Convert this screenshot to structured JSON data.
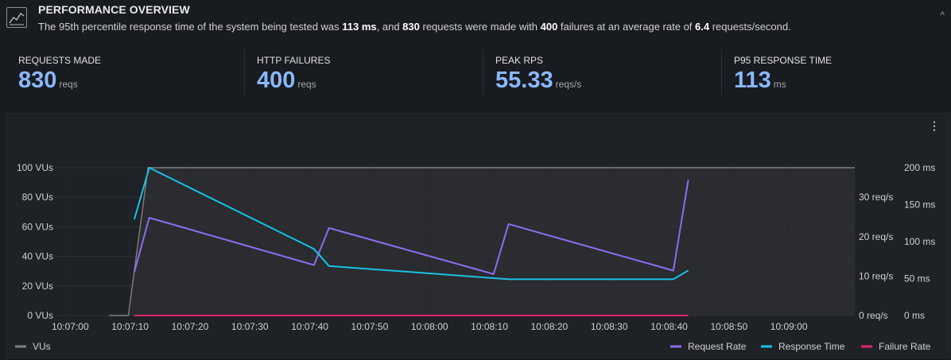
{
  "header": {
    "title": "PERFORMANCE OVERVIEW",
    "desc_parts": [
      {
        "text": "The 95th percentile response time of the system being tested was ",
        "bold": false
      },
      {
        "text": "113 ms",
        "bold": true
      },
      {
        "text": ", and ",
        "bold": false
      },
      {
        "text": "830",
        "bold": true
      },
      {
        "text": " requests were made with ",
        "bold": false
      },
      {
        "text": "400",
        "bold": true
      },
      {
        "text": " failures at an average rate of ",
        "bold": false
      },
      {
        "text": "6.4",
        "bold": true
      },
      {
        "text": " requests/second.",
        "bold": false
      }
    ],
    "collapse_glyph": "^"
  },
  "stats": [
    {
      "label": "REQUESTS MADE",
      "value": "830",
      "unit": "reqs"
    },
    {
      "label": "HTTP FAILURES",
      "value": "400",
      "unit": "reqs"
    },
    {
      "label": "PEAK RPS",
      "value": "55.33",
      "unit": "reqs/s"
    },
    {
      "label": "P95 RESPONSE TIME",
      "value": "113",
      "unit": "ms"
    }
  ],
  "panel": {
    "menu_glyph": "⋮"
  },
  "colors": {
    "vus": "#808080",
    "request_rate": "#8f6cf0",
    "response_time": "#19c2e6",
    "failure_rate": "#e0226e",
    "stat_value": "#8ab8ff"
  },
  "chart_data": {
    "type": "line",
    "x_tick_labels": [
      "10:07:00",
      "10:07:10",
      "10:07:20",
      "10:07:30",
      "10:07:40",
      "10:07:50",
      "10:08:00",
      "10:08:10",
      "10:08:20",
      "10:08:30",
      "10:08:40",
      "10:08:50",
      "10:09:00"
    ],
    "x_range_seconds": [
      -1.5,
      131
    ],
    "axes": {
      "vus": {
        "ticks": [
          "0 VUs",
          "20 VUs",
          "40 VUs",
          "60 VUs",
          "80 VUs",
          "100 VUs"
        ],
        "range": [
          0,
          100
        ]
      },
      "req_rate": {
        "ticks": [
          "0 req/s",
          "10 req/s",
          "20 req/s",
          "30 req/s"
        ],
        "range": [
          0,
          37.5
        ]
      },
      "response_time": {
        "ticks": [
          "0 ms",
          "50 ms",
          "100 ms",
          "150 ms",
          "200 ms"
        ],
        "range": [
          0,
          200
        ]
      }
    },
    "series": [
      {
        "name": "VUs",
        "axis": "vus",
        "color_key": "vus",
        "points": [
          [
            6.5,
            0
          ],
          [
            9.7,
            0
          ],
          [
            13,
            100
          ],
          [
            131,
            100
          ]
        ]
      },
      {
        "name": "Request Rate",
        "axis": "req_rate",
        "color_key": "request_rate",
        "points": [
          [
            10.7,
            11
          ],
          [
            13.2,
            24.8
          ],
          [
            40.7,
            12.8
          ],
          [
            43.2,
            22.2
          ],
          [
            70.7,
            10.5
          ],
          [
            73.2,
            23.2
          ],
          [
            100.7,
            11.4
          ],
          [
            103.2,
            34.4
          ]
        ]
      },
      {
        "name": "Response Time",
        "axis": "response_time",
        "color_key": "response_time",
        "points": [
          [
            10.7,
            130
          ],
          [
            13.2,
            200
          ],
          [
            40.7,
            90
          ],
          [
            43.2,
            67
          ],
          [
            73.2,
            49
          ],
          [
            100.7,
            49
          ],
          [
            103.2,
            61
          ]
        ]
      },
      {
        "name": "Failure Rate",
        "axis": "req_rate",
        "color_key": "failure_rate",
        "points": [
          [
            10.7,
            0
          ],
          [
            103.2,
            0
          ]
        ]
      }
    ],
    "legend": {
      "left": [
        {
          "name": "VUs",
          "color_key": "vus"
        }
      ],
      "right": [
        {
          "name": "Request Rate",
          "color_key": "request_rate"
        },
        {
          "name": "Response Time",
          "color_key": "response_time"
        },
        {
          "name": "Failure Rate",
          "color_key": "failure_rate"
        }
      ]
    }
  }
}
